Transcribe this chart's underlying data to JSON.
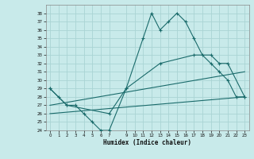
{
  "xlabel": "Humidex (Indice chaleur)",
  "background_color": "#c8eaea",
  "grid_color": "#aad4d4",
  "line_color": "#1a6b6b",
  "xlim": [
    -0.5,
    23.5
  ],
  "ylim": [
    24,
    39
  ],
  "xticks": [
    0,
    1,
    2,
    3,
    4,
    5,
    6,
    7,
    9,
    10,
    11,
    12,
    13,
    14,
    15,
    16,
    17,
    18,
    19,
    20,
    21,
    22,
    23
  ],
  "yticks": [
    24,
    25,
    26,
    27,
    28,
    29,
    30,
    31,
    32,
    33,
    34,
    35,
    36,
    37,
    38
  ],
  "curve1_x": [
    0,
    1,
    2,
    3,
    4,
    5,
    6,
    7,
    9,
    11,
    12,
    13,
    14,
    15,
    16,
    17,
    18,
    19,
    20,
    21,
    22,
    23
  ],
  "curve1_y": [
    29,
    28,
    27,
    27,
    26,
    25,
    24,
    24,
    29,
    35,
    38,
    36,
    37,
    38,
    37,
    35,
    33,
    32,
    31,
    30,
    28,
    28
  ],
  "curve2_x": [
    0,
    2,
    7,
    9,
    13,
    17,
    19,
    20,
    21,
    23
  ],
  "curve2_y": [
    29,
    27,
    26,
    29,
    32,
    33,
    33,
    32,
    32,
    28
  ],
  "curve3_x": [
    0,
    23
  ],
  "curve3_y": [
    27,
    31
  ],
  "curve4_x": [
    0,
    23
  ],
  "curve4_y": [
    26,
    28
  ]
}
